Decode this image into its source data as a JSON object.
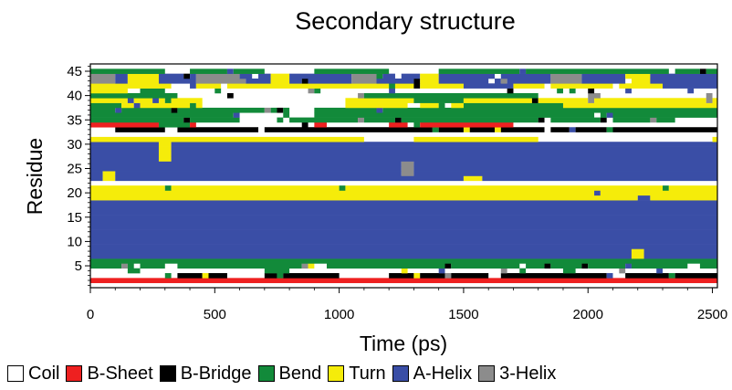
{
  "chart_data": {
    "type": "heatmap",
    "title": "Secondary structure",
    "xlabel": "Time (ps)",
    "ylabel": "Residue",
    "xlim": [
      0,
      2520
    ],
    "ylim": [
      0.5,
      46.5
    ],
    "xticks": [
      0,
      500,
      1000,
      1500,
      2000,
      2500
    ],
    "yticks": [
      5,
      10,
      15,
      20,
      25,
      30,
      35,
      40,
      45
    ],
    "legend_position": "bottom",
    "categories": [
      {
        "name": "Coil",
        "color": "#ffffff"
      },
      {
        "name": "B-Sheet",
        "color": "#ee2020"
      },
      {
        "name": "B-Bridge",
        "color": "#000000"
      },
      {
        "name": "Bend",
        "color": "#128a3a"
      },
      {
        "name": "Turn",
        "color": "#f5ec0a"
      },
      {
        "name": "A-Helix",
        "color": "#3a4ea6"
      },
      {
        "name": "3-Helix",
        "color": "#8c8c8c"
      }
    ],
    "time_step": 25,
    "base_rows": [
      {
        "residues": [
          1,
          1
        ],
        "state": "Coil"
      },
      {
        "residues": [
          2,
          2
        ],
        "state": "B-Sheet"
      },
      {
        "residues": [
          3,
          3
        ],
        "state": "B-Bridge"
      },
      {
        "residues": [
          4,
          4
        ],
        "state": "Coil"
      },
      {
        "residues": [
          5,
          6
        ],
        "state": "Bend"
      },
      {
        "residues": [
          7,
          18
        ],
        "state": "A-Helix"
      },
      {
        "residues": [
          19,
          21
        ],
        "state": "Turn"
      },
      {
        "residues": [
          22,
          22
        ],
        "state": "Coil"
      },
      {
        "residues": [
          23,
          30
        ],
        "state": "A-Helix"
      },
      {
        "residues": [
          31,
          31
        ],
        "state": "Turn"
      },
      {
        "residues": [
          32,
          32
        ],
        "state": "Coil"
      },
      {
        "residues": [
          33,
          33
        ],
        "state": "B-Bridge"
      },
      {
        "residues": [
          34,
          34
        ],
        "state": "B-Sheet"
      },
      {
        "residues": [
          35,
          37
        ],
        "state": "Bend"
      },
      {
        "residues": [
          38,
          39
        ],
        "state": "Turn"
      },
      {
        "residues": [
          40,
          40
        ],
        "state": "Coil"
      },
      {
        "residues": [
          41,
          41
        ],
        "state": "Coil"
      },
      {
        "residues": [
          42,
          42
        ],
        "state": "Turn"
      },
      {
        "residues": [
          43,
          44
        ],
        "state": "A-Helix"
      },
      {
        "residues": [
          45,
          45
        ],
        "state": "Bend"
      },
      {
        "residues": [
          46,
          46
        ],
        "state": "Coil"
      }
    ],
    "segments": [
      {
        "residues": [
          2,
          2
        ],
        "state": "B-Sheet",
        "t": [
          0,
          60
        ]
      },
      {
        "residues": [
          2,
          2
        ],
        "state": "B-Sheet",
        "t": [
          90,
          270
        ]
      },
      {
        "residues": [
          2,
          2
        ],
        "state": "B-Sheet",
        "t": [
          400,
          450
        ]
      },
      {
        "residues": [
          2,
          2
        ],
        "state": "B-Sheet",
        "t": [
          850,
          900
        ]
      },
      {
        "residues": [
          2,
          2
        ],
        "state": "B-Sheet",
        "t": [
          1290,
          1310
        ]
      },
      {
        "residues": [
          2,
          2
        ],
        "state": "B-Sheet",
        "t": [
          1500,
          1580
        ]
      },
      {
        "residues": [
          2,
          2
        ],
        "state": "B-Sheet",
        "t": [
          1720,
          1740
        ]
      },
      {
        "residues": [
          2,
          2
        ],
        "state": "B-Sheet",
        "t": [
          2450,
          2480
        ]
      },
      {
        "residues": [
          3,
          3
        ],
        "state": "Coil",
        "t": [
          0,
          300
        ]
      },
      {
        "residues": [
          3,
          3
        ],
        "state": "Coil",
        "t": [
          560,
          700
        ]
      },
      {
        "residues": [
          3,
          3
        ],
        "state": "Coil",
        "t": [
          1000,
          1200
        ]
      },
      {
        "residues": [
          3,
          3
        ],
        "state": "Coil",
        "t": [
          1600,
          1650
        ]
      },
      {
        "residues": [
          3,
          3
        ],
        "state": "Coil",
        "t": [
          2100,
          2150
        ]
      },
      {
        "residues": [
          4,
          4
        ],
        "state": "Bend",
        "t": [
          150,
          200
        ]
      },
      {
        "residues": [
          4,
          4
        ],
        "state": "Bend",
        "t": [
          720,
          780
        ]
      },
      {
        "residues": [
          4,
          4
        ],
        "state": "Bend",
        "t": [
          1900,
          1950
        ]
      },
      {
        "residues": [
          5,
          5
        ],
        "state": "Coil",
        "t": [
          300,
          330
        ]
      },
      {
        "residues": [
          5,
          5
        ],
        "state": "Coil",
        "t": [
          900,
          930
        ]
      },
      {
        "residues": [
          5,
          5
        ],
        "state": "Coil",
        "t": [
          2400,
          2450
        ]
      },
      {
        "residues": [
          7,
          8
        ],
        "state": "Turn",
        "t": [
          2190,
          2210
        ]
      },
      {
        "residues": [
          19,
          19
        ],
        "state": "A-Helix",
        "t": [
          2200,
          2230
        ]
      },
      {
        "residues": [
          20,
          20
        ],
        "state": "A-Helix",
        "t": [
          2030,
          2050
        ]
      },
      {
        "residues": [
          21,
          21
        ],
        "state": "Bend",
        "t": [
          300,
          310
        ]
      },
      {
        "residues": [
          21,
          21
        ],
        "state": "Bend",
        "t": [
          1000,
          1010
        ]
      },
      {
        "residues": [
          21,
          21
        ],
        "state": "Bend",
        "t": [
          2300,
          2310
        ]
      },
      {
        "residues": [
          23,
          23
        ],
        "state": "Turn",
        "t": [
          1520,
          1560
        ]
      },
      {
        "residues": [
          23,
          24
        ],
        "state": "Turn",
        "t": [
          60,
          80
        ]
      },
      {
        "residues": [
          24,
          26
        ],
        "state": "3-Helix",
        "t": [
          1260,
          1280
        ]
      },
      {
        "residues": [
          27,
          30
        ],
        "state": "Turn",
        "t": [
          290,
          310
        ]
      },
      {
        "residues": [
          31,
          31
        ],
        "state": "Coil",
        "t": [
          1100,
          1300
        ]
      },
      {
        "residues": [
          31,
          31
        ],
        "state": "Coil",
        "t": [
          1800,
          2500
        ]
      },
      {
        "residues": [
          33,
          33
        ],
        "state": "Coil",
        "t": [
          0,
          80
        ]
      },
      {
        "residues": [
          33,
          33
        ],
        "state": "Coil",
        "t": [
          300,
          330
        ]
      },
      {
        "residues": [
          34,
          34
        ],
        "state": "Coil",
        "t": [
          430,
          850
        ]
      },
      {
        "residues": [
          34,
          34
        ],
        "state": "Coil",
        "t": [
          950,
          1200
        ]
      },
      {
        "residues": [
          34,
          34
        ],
        "state": "Coil",
        "t": [
          1700,
          2520
        ]
      },
      {
        "residues": [
          34,
          34
        ],
        "state": "Bend",
        "t": [
          280,
          400
        ]
      },
      {
        "residues": [
          35,
          36
        ],
        "state": "Coil",
        "t": [
          600,
          750
        ]
      },
      {
        "residues": [
          36,
          37
        ],
        "state": "Coil",
        "t": [
          820,
          900
        ]
      },
      {
        "residues": [
          35,
          35
        ],
        "state": "Coil",
        "t": [
          2350,
          2520
        ]
      },
      {
        "residues": [
          38,
          38
        ],
        "state": "Bend",
        "t": [
          0,
          120
        ]
      },
      {
        "residues": [
          38,
          39
        ],
        "state": "Coil",
        "t": [
          460,
          1020
        ]
      },
      {
        "residues": [
          38,
          38
        ],
        "state": "Bend",
        "t": [
          1500,
          1900
        ]
      },
      {
        "residues": [
          39,
          39
        ],
        "state": "Bend",
        "t": [
          1300,
          1500
        ]
      },
      {
        "residues": [
          40,
          40
        ],
        "state": "Bend",
        "t": [
          0,
          350
        ]
      },
      {
        "residues": [
          40,
          40
        ],
        "state": "Bend",
        "t": [
          1100,
          1800
        ]
      },
      {
        "residues": [
          41,
          41
        ],
        "state": "Turn",
        "t": [
          0,
          150
        ]
      },
      {
        "residues": [
          41,
          41
        ],
        "state": "Bend",
        "t": [
          200,
          300
        ]
      },
      {
        "residues": [
          42,
          42
        ],
        "state": "Coil",
        "t": [
          340,
          400
        ]
      },
      {
        "residues": [
          42,
          42
        ],
        "state": "A-Helix",
        "t": [
          1500,
          1700
        ]
      },
      {
        "residues": [
          42,
          42
        ],
        "state": "A-Helix",
        "t": [
          2300,
          2520
        ]
      },
      {
        "residues": [
          43,
          44
        ],
        "state": "3-Helix",
        "t": [
          0,
          100
        ]
      },
      {
        "residues": [
          43,
          44
        ],
        "state": "Turn",
        "t": [
          160,
          260
        ]
      },
      {
        "residues": [
          43,
          44
        ],
        "state": "3-Helix",
        "t": [
          440,
          600
        ]
      },
      {
        "residues": [
          43,
          44
        ],
        "state": "Turn",
        "t": [
          730,
          800
        ]
      },
      {
        "residues": [
          43,
          44
        ],
        "state": "3-Helix",
        "t": [
          1050,
          1150
        ]
      },
      {
        "residues": [
          43,
          44
        ],
        "state": "Turn",
        "t": [
          1330,
          1380
        ]
      },
      {
        "residues": [
          43,
          44
        ],
        "state": "3-Helix",
        "t": [
          1850,
          1960
        ]
      },
      {
        "residues": [
          43,
          44
        ],
        "state": "Turn",
        "t": [
          2180,
          2240
        ]
      },
      {
        "residues": [
          45,
          45
        ],
        "state": "Coil",
        "t": [
          300,
          400
        ]
      },
      {
        "residues": [
          45,
          45
        ],
        "state": "Coil",
        "t": [
          700,
          900
        ]
      },
      {
        "residues": [
          45,
          45
        ],
        "state": "Coil",
        "t": [
          1200,
          1400
        ]
      }
    ],
    "noise": {
      "seed": 7,
      "probability": 0.09,
      "rows": [
        3,
        4,
        5,
        33,
        34,
        35,
        36,
        37,
        38,
        39,
        40,
        41,
        42,
        43,
        44,
        45
      ],
      "states": [
        "Coil",
        "B-Bridge",
        "Bend",
        "Turn",
        "3-Helix",
        "A-Helix"
      ]
    }
  }
}
